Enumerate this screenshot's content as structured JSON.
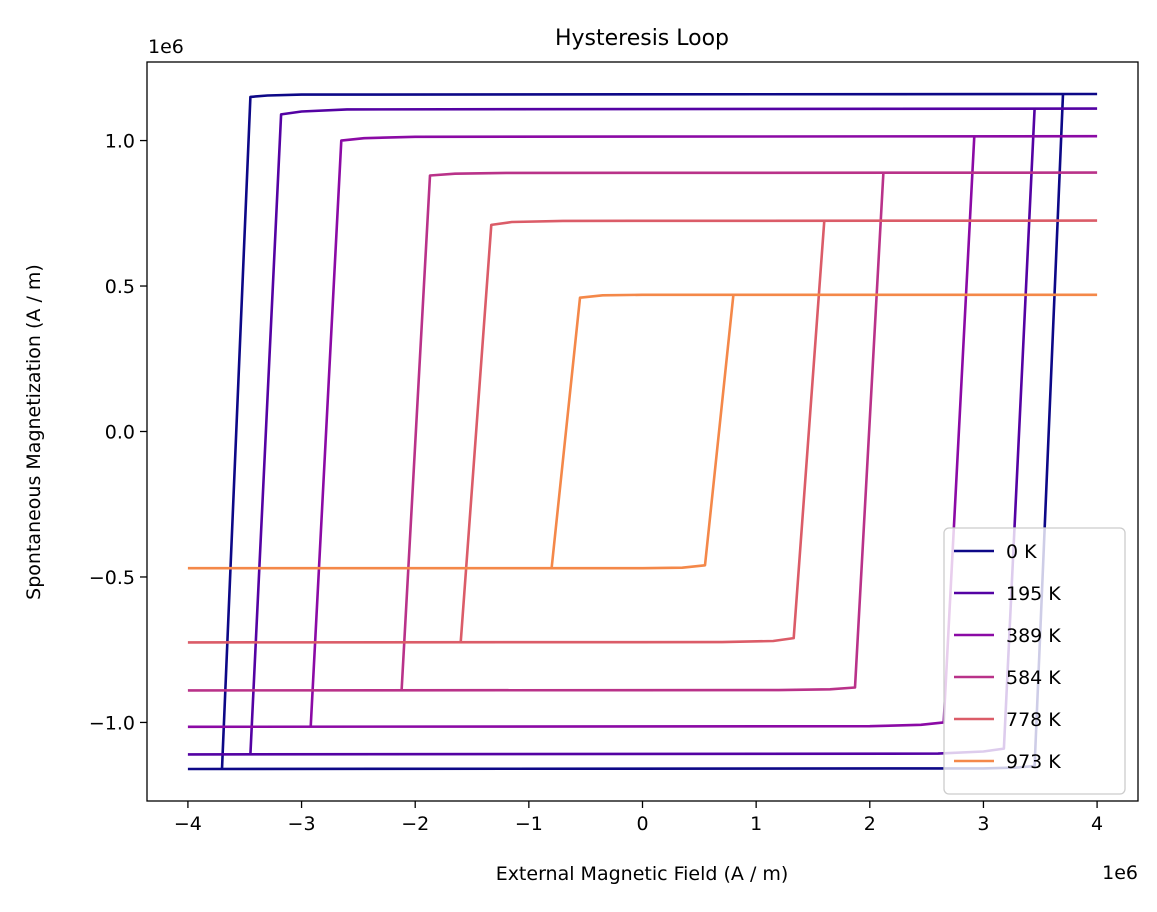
{
  "chart_data": {
    "type": "line",
    "title": "Hysteresis Loop",
    "xlabel": "External Magnetic Field (A / m)",
    "ylabel": "Spontaneous Magnetization (A / m)",
    "x_offset_label": "1e6",
    "y_offset_label": "1e6",
    "xlim": [
      -4.36,
      4.36
    ],
    "ylim": [
      -1.27,
      1.27
    ],
    "x_ticks": [
      -4,
      -3,
      -2,
      -1,
      0,
      1,
      2,
      3,
      4
    ],
    "x_tick_labels": [
      "−4",
      "−3",
      "−2",
      "−1",
      "0",
      "1",
      "2",
      "3",
      "4"
    ],
    "y_ticks": [
      -1.0,
      -0.5,
      0.0,
      0.5,
      1.0
    ],
    "y_tick_labels": [
      "−1.0",
      "−0.5",
      "0.0",
      "0.5",
      "1.0"
    ],
    "grid": false,
    "legend_position": "lower-right",
    "series": [
      {
        "name": "0 K",
        "color": "#0d0887",
        "Ms": 1.16,
        "upper_branch": [
          [
            -3.7,
            -1.16
          ],
          [
            -3.45,
            1.15
          ],
          [
            -3.3,
            1.155
          ],
          [
            -3.0,
            1.158
          ],
          [
            4.0,
            1.16
          ]
        ],
        "lower_branch": [
          [
            -4.0,
            -1.16
          ],
          [
            3.0,
            -1.158
          ],
          [
            3.3,
            -1.155
          ],
          [
            3.45,
            -1.15
          ],
          [
            3.7,
            1.16
          ]
        ]
      },
      {
        "name": "195 K",
        "color": "#5402a3",
        "Ms": 1.11,
        "upper_branch": [
          [
            -3.45,
            -1.11
          ],
          [
            -3.18,
            1.09
          ],
          [
            -3.0,
            1.1
          ],
          [
            -2.6,
            1.107
          ],
          [
            4.0,
            1.11
          ]
        ],
        "lower_branch": [
          [
            -4.0,
            -1.11
          ],
          [
            2.6,
            -1.107
          ],
          [
            3.0,
            -1.1
          ],
          [
            3.18,
            -1.09
          ],
          [
            3.45,
            1.11
          ]
        ]
      },
      {
        "name": "389 K",
        "color": "#8b0aa5",
        "Ms": 1.015,
        "upper_branch": [
          [
            -2.92,
            -1.015
          ],
          [
            -2.65,
            1.0
          ],
          [
            -2.45,
            1.008
          ],
          [
            -2.0,
            1.013
          ],
          [
            4.0,
            1.015
          ]
        ],
        "lower_branch": [
          [
            -4.0,
            -1.015
          ],
          [
            2.0,
            -1.013
          ],
          [
            2.45,
            -1.008
          ],
          [
            2.65,
            -1.0
          ],
          [
            2.92,
            1.015
          ]
        ]
      },
      {
        "name": "584 K",
        "color": "#b93289",
        "Ms": 0.89,
        "upper_branch": [
          [
            -2.12,
            -0.89
          ],
          [
            -1.87,
            0.88
          ],
          [
            -1.65,
            0.886
          ],
          [
            -1.2,
            0.889
          ],
          [
            4.0,
            0.89
          ]
        ],
        "lower_branch": [
          [
            -4.0,
            -0.89
          ],
          [
            1.2,
            -0.889
          ],
          [
            1.65,
            -0.886
          ],
          [
            1.87,
            -0.88
          ],
          [
            2.12,
            0.89
          ]
        ]
      },
      {
        "name": "778 K",
        "color": "#db5c68",
        "Ms": 0.725,
        "upper_branch": [
          [
            -1.6,
            -0.725
          ],
          [
            -1.33,
            0.71
          ],
          [
            -1.15,
            0.72
          ],
          [
            -0.7,
            0.724
          ],
          [
            4.0,
            0.725
          ]
        ],
        "lower_branch": [
          [
            -4.0,
            -0.725
          ],
          [
            0.7,
            -0.724
          ],
          [
            1.15,
            -0.72
          ],
          [
            1.33,
            -0.71
          ],
          [
            1.6,
            0.725
          ]
        ]
      },
      {
        "name": "973 K",
        "color": "#f48849",
        "Ms": 0.47,
        "upper_branch": [
          [
            -0.8,
            -0.47
          ],
          [
            -0.55,
            0.46
          ],
          [
            -0.35,
            0.468
          ],
          [
            0.0,
            0.47
          ],
          [
            4.0,
            0.47
          ]
        ],
        "lower_branch": [
          [
            -4.0,
            -0.47
          ],
          [
            0.0,
            -0.47
          ],
          [
            0.35,
            -0.468
          ],
          [
            0.55,
            -0.46
          ],
          [
            0.8,
            0.47
          ]
        ]
      }
    ]
  }
}
